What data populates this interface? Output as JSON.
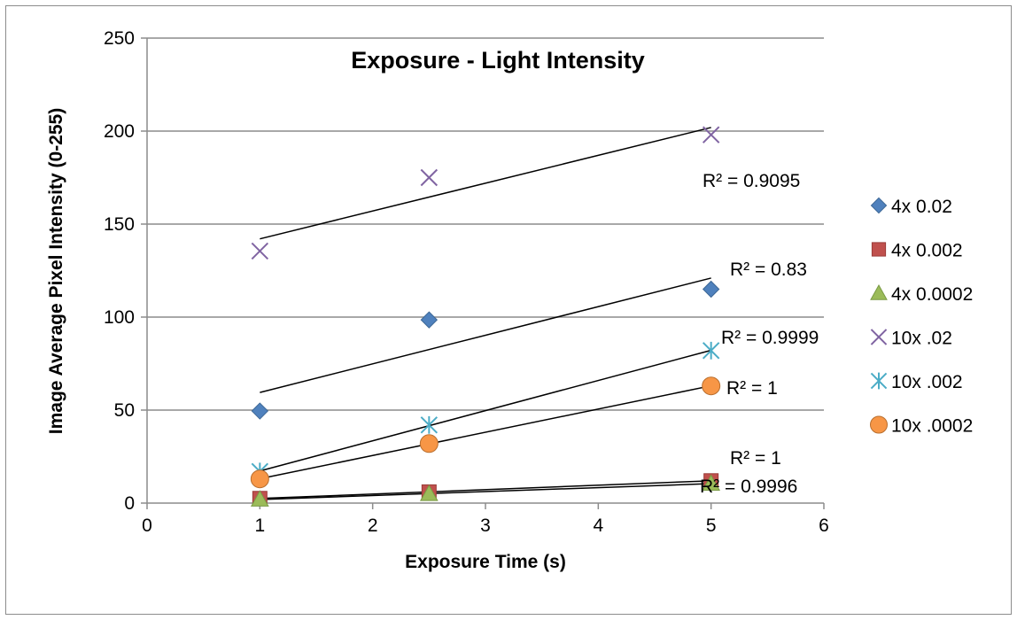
{
  "chart_data": {
    "type": "scatter",
    "title": "Exposure - Light Intensity",
    "xlabel": "Exposure Time (s)",
    "ylabel": "Image Average Pixel Intensity (0-255)",
    "xlim": [
      0,
      6
    ],
    "ylim": [
      0,
      250
    ],
    "x_ticks": [
      0,
      1,
      2,
      3,
      4,
      5,
      6
    ],
    "y_ticks": [
      0,
      50,
      100,
      150,
      200,
      250
    ],
    "grid": "horizontal major gridlines",
    "legend_position": "right",
    "series": [
      {
        "name": "4x 0.02",
        "marker": "diamond",
        "color": "#4f81bd",
        "points": [
          [
            1,
            49.5
          ],
          [
            2.5,
            98.5
          ],
          [
            5,
            115
          ]
        ],
        "trendline": {
          "type": "linear",
          "r2_label": "R² = 0.83"
        }
      },
      {
        "name": "4x 0.002",
        "marker": "square",
        "color": "#c0504d",
        "points": [
          [
            1,
            2.5
          ],
          [
            2.5,
            6
          ],
          [
            5,
            12
          ]
        ],
        "trendline": {
          "type": "linear",
          "r2_label": "R² = 1"
        }
      },
      {
        "name": "4x 0.0002",
        "marker": "triangle",
        "color": "#9bbb59",
        "points": [
          [
            1,
            2
          ],
          [
            2.5,
            5
          ],
          [
            5,
            10.5
          ]
        ],
        "trendline": {
          "type": "linear",
          "r2_label": "R² = 0.9996"
        }
      },
      {
        "name": "10x .02",
        "marker": "x",
        "color": "#8064a2",
        "points": [
          [
            1,
            135.5
          ],
          [
            2.5,
            175
          ],
          [
            5,
            198
          ]
        ],
        "trendline": {
          "type": "linear",
          "r2_label": "R² = 0.9095"
        }
      },
      {
        "name": "10x .002",
        "marker": "star",
        "color": "#4bacc6",
        "points": [
          [
            1,
            17
          ],
          [
            2.5,
            42
          ],
          [
            5,
            82
          ]
        ],
        "trendline": {
          "type": "linear",
          "r2_label": "R² = 0.9999"
        }
      },
      {
        "name": "10x .0002",
        "marker": "circle",
        "color": "#f79646",
        "points": [
          [
            1,
            13
          ],
          [
            2.5,
            32
          ],
          [
            5,
            63
          ]
        ],
        "trendline": {
          "type": "linear",
          "r2_label": "R² = 1"
        }
      }
    ]
  }
}
